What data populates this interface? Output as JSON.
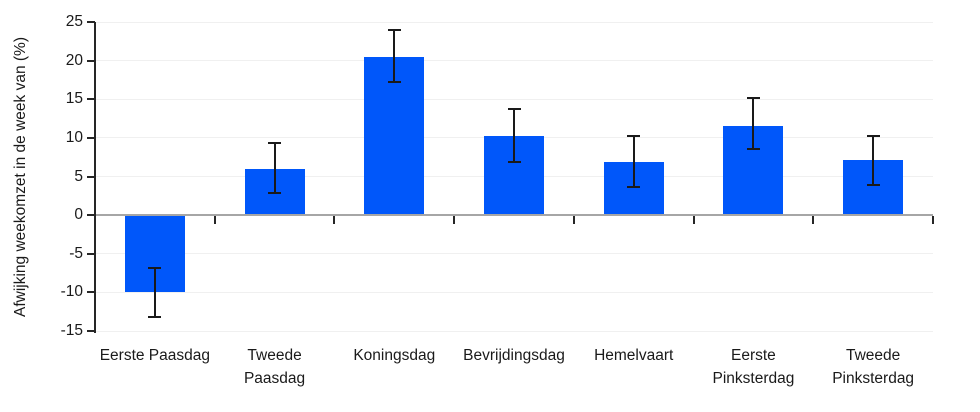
{
  "chart_data": {
    "type": "bar",
    "title": "",
    "xlabel": "",
    "ylabel": "Afwijking weekomzet in de week van (%)",
    "ylim": [
      -15,
      25
    ],
    "yticks": [
      25,
      20,
      15,
      10,
      5,
      0,
      -5,
      -10,
      -15
    ],
    "grid": "horizontal light gridlines every 5 units, darker line at 0",
    "legend_position": "none",
    "categories": [
      "Eerste Paasdag",
      "Tweede Paasdag",
      "Koningsdag",
      "Bevrijdingsdag",
      "Hemelvaart",
      "Eerste Pinksterdag",
      "Tweede Pinksterdag"
    ],
    "category_label_lines": [
      [
        "Eerste Paasdag"
      ],
      [
        "Tweede",
        "Paasdag"
      ],
      [
        "Koningsdag"
      ],
      [
        "Bevrijdingsdag"
      ],
      [
        "Hemelvaart"
      ],
      [
        "Eerste",
        "Pinksterdag"
      ],
      [
        "Tweede",
        "Pinksterdag"
      ]
    ],
    "series": [
      {
        "name": "Afwijking weekomzet (%)",
        "values": [
          -10,
          6,
          20.5,
          10.2,
          6.9,
          11.6,
          7.1
        ],
        "error_low": [
          -13.2,
          2.8,
          17.2,
          6.9,
          3.7,
          8.6,
          3.9
        ],
        "error_high": [
          -6.8,
          9.4,
          23.9,
          13.7,
          10.2,
          15.1,
          10.3
        ]
      }
    ]
  },
  "colors": {
    "bar": "#0057fa",
    "error_bar": "#1a1a1a",
    "axis": "#262626",
    "zero_line": "#a6a6a6",
    "gridline": "#f0f0f0",
    "text": "#1a1a1a",
    "background": "#ffffff"
  }
}
